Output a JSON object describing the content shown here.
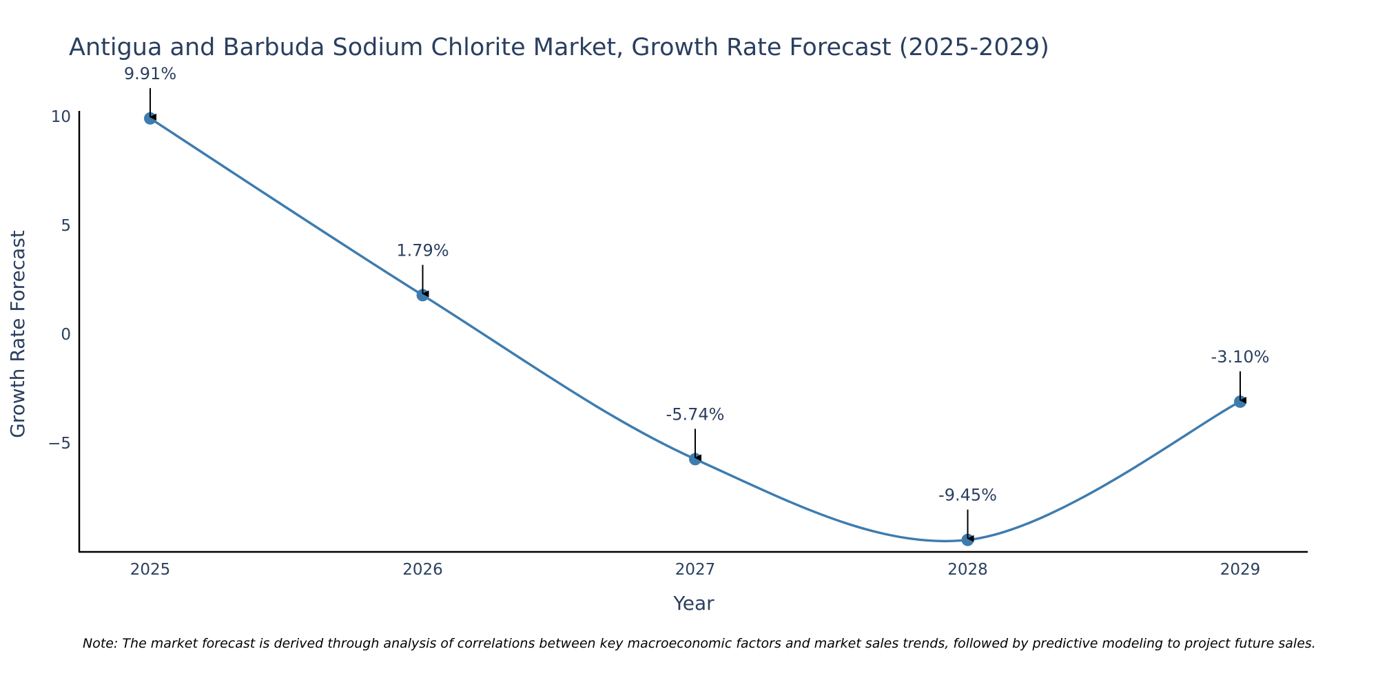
{
  "chart_data": {
    "type": "line",
    "title": "Antigua and Barbuda Sodium Chlorite Market, Growth Rate Forecast (2025-2029)",
    "xlabel": "Year",
    "ylabel": "Growth Rate Forecast",
    "categories": [
      "2025",
      "2026",
      "2027",
      "2028",
      "2029"
    ],
    "values": [
      9.91,
      1.79,
      -5.74,
      -9.45,
      -3.1
    ],
    "data_labels": [
      "9.91%",
      "1.79%",
      "-5.74%",
      "-9.45%",
      "-3.10%"
    ],
    "yticks": [
      10,
      5,
      0,
      -5
    ],
    "ytick_labels": [
      "10",
      "5",
      "0",
      "−5"
    ],
    "ylim": [
      -10,
      10.4
    ],
    "grid": false,
    "legend": "none",
    "line_color": "#3d7caf",
    "marker_color": "#3d7caf",
    "arrow_color": "#000000",
    "note": "Note: The market forecast is derived through analysis of correlations between key macroeconomic factors and market sales trends, followed by predictive modeling to project future sales."
  }
}
